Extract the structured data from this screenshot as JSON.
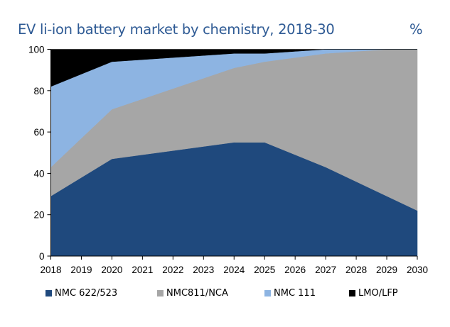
{
  "header": {
    "title": "EV li-ion battery market by chemistry, 2018-30",
    "unit": "%"
  },
  "chart_data": {
    "type": "area",
    "stacked": true,
    "title": "EV li-ion battery market by chemistry, 2018-30",
    "xlabel": "",
    "ylabel": "%",
    "ylim": [
      0,
      100
    ],
    "yticks": [
      0,
      20,
      40,
      60,
      80,
      100
    ],
    "x": [
      "2018",
      "2019",
      "2020",
      "2021",
      "2022",
      "2023",
      "2024",
      "2025",
      "2026",
      "2027",
      "2028",
      "2029",
      "2030"
    ],
    "grid": false,
    "legend_position": "bottom",
    "series": [
      {
        "name": "NMC 622/523",
        "color": "#1F497D",
        "values": [
          29,
          38,
          47,
          49,
          51,
          53,
          55,
          55,
          49,
          43,
          36,
          29,
          22
        ]
      },
      {
        "name": "NMC811/NCA",
        "color": "#A6A6A6",
        "values": [
          14,
          19,
          24,
          27,
          30,
          33,
          36,
          39,
          47,
          55,
          63,
          71,
          78
        ]
      },
      {
        "name": "NMC 111",
        "color": "#8DB4E2",
        "values": [
          39,
          31,
          23,
          19,
          15,
          11,
          7,
          4,
          3,
          2,
          1,
          0,
          0
        ]
      },
      {
        "name": "LMO/LFP",
        "color": "#000000",
        "values": [
          18,
          12,
          6,
          5,
          4,
          3,
          2,
          2,
          1,
          0,
          0,
          0,
          0
        ]
      }
    ]
  }
}
